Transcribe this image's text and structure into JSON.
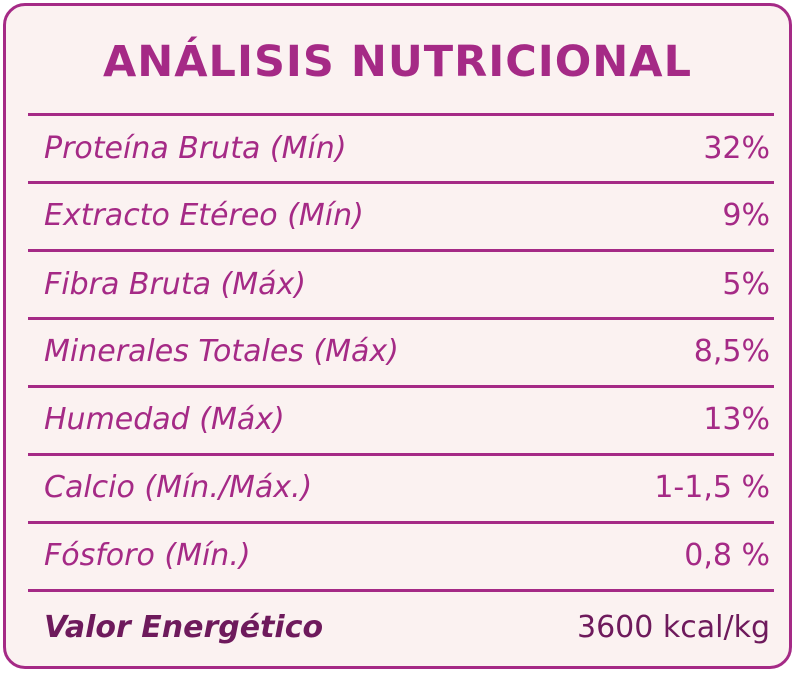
{
  "title": "ANÁLISIS NUTRICIONAL",
  "rows": [
    {
      "label": "Proteína Bruta (Mín)",
      "value": "32%"
    },
    {
      "label": "Extracto Etéreo (Mín)",
      "value": "9%"
    },
    {
      "label": "Fibra Bruta (Máx)",
      "value": "5%"
    },
    {
      "label": "Minerales Totales (Máx)",
      "value": "8,5%"
    },
    {
      "label": "Humedad (Máx)",
      "value": "13%"
    },
    {
      "label": "Calcio (Mín./Máx.)",
      "value": "1-1,5 %"
    },
    {
      "label": "Fósforo (Mín.)",
      "value": "0,8 %"
    }
  ],
  "energy": {
    "label": "Valor Energético",
    "value": "3600 kcal/kg"
  },
  "colors": {
    "accent": "#a52a86",
    "background": "#fbf2f1",
    "energy_text": "#6e1a5c"
  }
}
